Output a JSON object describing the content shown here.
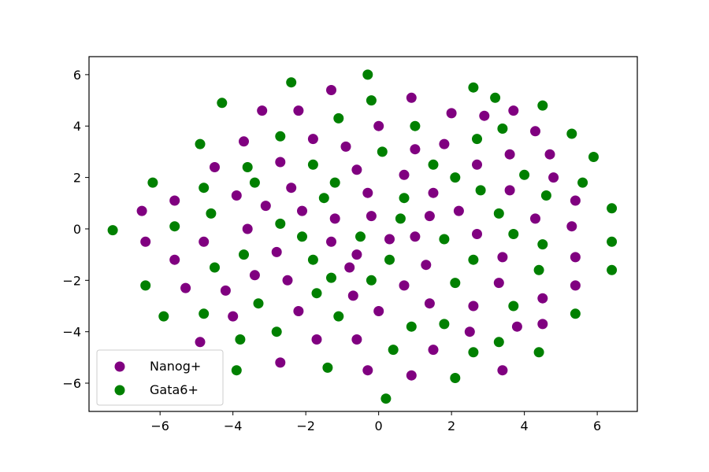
{
  "chart_data": {
    "type": "scatter",
    "title": "",
    "xlabel": "",
    "ylabel": "",
    "xlim": [
      -7.95,
      7.1
    ],
    "ylim": [
      -7.1,
      6.7
    ],
    "xticks": [
      -6,
      -4,
      -2,
      0,
      2,
      4,
      6
    ],
    "yticks": [
      -6,
      -4,
      -2,
      0,
      2,
      4,
      6
    ],
    "x_tick_labels": [
      "−6",
      "−4",
      "−2",
      "0",
      "2",
      "4",
      "6"
    ],
    "y_tick_labels": [
      "−6",
      "−4",
      "−2",
      "0",
      "2",
      "4",
      "6"
    ],
    "grid": false,
    "legend_position": "lower-left",
    "series": [
      {
        "name": "Nanog+",
        "color": "#800080",
        "points": [
          [
            -6.5,
            0.7
          ],
          [
            -6.4,
            -0.5
          ],
          [
            -5.6,
            1.1
          ],
          [
            -5.6,
            -1.2
          ],
          [
            -5.3,
            -2.3
          ],
          [
            -4.9,
            -4.4
          ],
          [
            -4.8,
            -0.5
          ],
          [
            -4.5,
            2.4
          ],
          [
            -4.2,
            -2.4
          ],
          [
            -4.0,
            -3.4
          ],
          [
            -3.9,
            1.3
          ],
          [
            -3.7,
            3.4
          ],
          [
            -3.6,
            0.0
          ],
          [
            -3.4,
            -1.8
          ],
          [
            -3.2,
            4.6
          ],
          [
            -3.1,
            0.9
          ],
          [
            -2.8,
            -0.9
          ],
          [
            -2.7,
            2.6
          ],
          [
            -2.7,
            -5.2
          ],
          [
            -2.5,
            -2.0
          ],
          [
            -2.4,
            1.6
          ],
          [
            -2.2,
            4.6
          ],
          [
            -2.2,
            -3.2
          ],
          [
            -2.1,
            0.7
          ],
          [
            -1.8,
            3.5
          ],
          [
            -1.7,
            -4.3
          ],
          [
            -1.3,
            5.4
          ],
          [
            -1.3,
            -0.5
          ],
          [
            -1.2,
            0.4
          ],
          [
            -0.9,
            3.2
          ],
          [
            -0.8,
            -1.5
          ],
          [
            -0.7,
            -2.6
          ],
          [
            -0.6,
            2.3
          ],
          [
            -0.6,
            -1.0
          ],
          [
            -0.6,
            -4.3
          ],
          [
            -0.3,
            1.4
          ],
          [
            -0.3,
            -5.5
          ],
          [
            -0.2,
            0.5
          ],
          [
            0.0,
            4.0
          ],
          [
            0.0,
            -3.2
          ],
          [
            0.3,
            -0.4
          ],
          [
            0.7,
            2.1
          ],
          [
            0.7,
            -2.2
          ],
          [
            0.9,
            5.1
          ],
          [
            0.9,
            -5.7
          ],
          [
            1.0,
            3.1
          ],
          [
            1.0,
            -0.3
          ],
          [
            1.3,
            -1.4
          ],
          [
            1.4,
            0.5
          ],
          [
            1.4,
            -2.9
          ],
          [
            1.5,
            1.4
          ],
          [
            1.5,
            -4.7
          ],
          [
            1.8,
            3.3
          ],
          [
            2.0,
            4.5
          ],
          [
            2.2,
            0.7
          ],
          [
            2.5,
            -4.0
          ],
          [
            2.6,
            -3.0
          ],
          [
            2.7,
            2.5
          ],
          [
            2.7,
            -0.2
          ],
          [
            2.9,
            4.4
          ],
          [
            3.3,
            -2.1
          ],
          [
            3.4,
            -1.1
          ],
          [
            3.4,
            -5.5
          ],
          [
            3.6,
            2.9
          ],
          [
            3.6,
            1.5
          ],
          [
            3.7,
            4.6
          ],
          [
            3.8,
            -3.8
          ],
          [
            4.3,
            3.8
          ],
          [
            4.3,
            0.4
          ],
          [
            4.5,
            -2.7
          ],
          [
            4.5,
            -3.7
          ],
          [
            4.7,
            2.9
          ],
          [
            4.8,
            2.0
          ],
          [
            5.3,
            0.1
          ],
          [
            5.4,
            1.1
          ],
          [
            5.4,
            -1.1
          ],
          [
            5.4,
            -2.2
          ]
        ]
      },
      {
        "name": "Gata6+",
        "color": "#008000",
        "points": [
          [
            -7.3,
            -0.05
          ],
          [
            -6.2,
            1.8
          ],
          [
            -6.4,
            -2.2
          ],
          [
            -5.9,
            -3.4
          ],
          [
            -5.6,
            0.1
          ],
          [
            -4.9,
            3.3
          ],
          [
            -4.8,
            1.6
          ],
          [
            -4.8,
            -3.3
          ],
          [
            -4.6,
            0.6
          ],
          [
            -4.5,
            -1.5
          ],
          [
            -4.3,
            4.9
          ],
          [
            -3.9,
            -5.5
          ],
          [
            -3.8,
            -4.3
          ],
          [
            -3.7,
            -1.0
          ],
          [
            -3.6,
            2.4
          ],
          [
            -3.4,
            1.8
          ],
          [
            -3.3,
            -2.9
          ],
          [
            -2.8,
            -4.0
          ],
          [
            -2.7,
            3.6
          ],
          [
            -2.7,
            0.2
          ],
          [
            -2.4,
            5.7
          ],
          [
            -2.1,
            -0.3
          ],
          [
            -1.8,
            -1.2
          ],
          [
            -1.8,
            2.5
          ],
          [
            -1.7,
            -2.5
          ],
          [
            -1.5,
            1.2
          ],
          [
            -1.4,
            -5.4
          ],
          [
            -1.3,
            -1.9
          ],
          [
            -1.2,
            1.8
          ],
          [
            -1.1,
            4.3
          ],
          [
            -1.1,
            -3.4
          ],
          [
            -0.5,
            -0.3
          ],
          [
            -0.3,
            6.0
          ],
          [
            -0.2,
            5.0
          ],
          [
            -0.2,
            -2.0
          ],
          [
            0.1,
            3.0
          ],
          [
            0.2,
            -6.6
          ],
          [
            0.3,
            -1.2
          ],
          [
            0.4,
            -4.7
          ],
          [
            0.6,
            0.4
          ],
          [
            0.7,
            1.2
          ],
          [
            0.9,
            -3.8
          ],
          [
            1.0,
            4.0
          ],
          [
            1.5,
            2.5
          ],
          [
            1.8,
            -0.4
          ],
          [
            1.8,
            -3.7
          ],
          [
            2.1,
            2.0
          ],
          [
            2.1,
            -2.1
          ],
          [
            2.1,
            -5.8
          ],
          [
            2.6,
            5.5
          ],
          [
            2.6,
            -1.2
          ],
          [
            2.6,
            -4.8
          ],
          [
            2.7,
            3.5
          ],
          [
            2.8,
            1.5
          ],
          [
            3.2,
            5.1
          ],
          [
            3.3,
            0.6
          ],
          [
            3.3,
            -4.4
          ],
          [
            3.4,
            3.9
          ],
          [
            3.7,
            -0.2
          ],
          [
            3.7,
            -3.0
          ],
          [
            4.0,
            2.1
          ],
          [
            4.4,
            -1.6
          ],
          [
            4.4,
            -4.8
          ],
          [
            4.5,
            4.8
          ],
          [
            4.5,
            -0.6
          ],
          [
            4.6,
            1.3
          ],
          [
            5.3,
            3.7
          ],
          [
            5.4,
            -3.3
          ],
          [
            5.6,
            1.8
          ],
          [
            5.9,
            2.8
          ],
          [
            6.4,
            -0.5
          ],
          [
            6.4,
            0.8
          ],
          [
            6.4,
            -1.6
          ]
        ]
      }
    ]
  }
}
